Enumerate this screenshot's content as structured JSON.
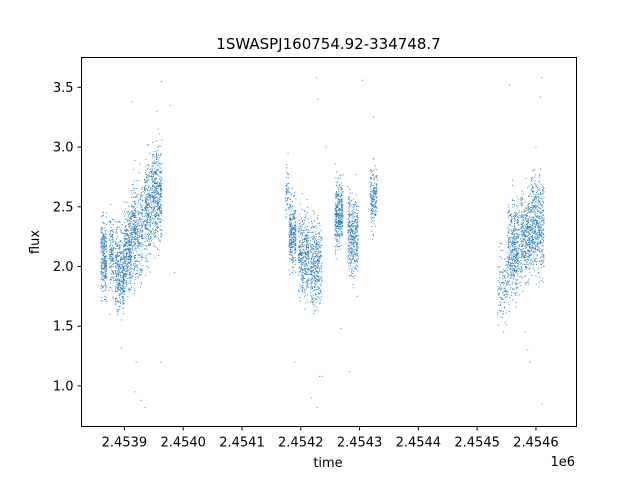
{
  "chart_data": {
    "type": "scatter",
    "title": "1SWASPJ160754.92-334748.7",
    "xlabel": "time",
    "ylabel": "flux",
    "x_offset_label": "1e6",
    "xlim": [
      2453827,
      2454669
    ],
    "ylim": [
      0.66,
      3.75
    ],
    "x_ticks": [
      2.4539,
      2.454,
      2.4541,
      2.4542,
      2.4543,
      2.4544,
      2.4545,
      2.4546
    ],
    "x_tick_labels": [
      "2.4539",
      "2.4540",
      "2.4541",
      "2.4542",
      "2.4543",
      "2.4544",
      "2.4545",
      "2.4546"
    ],
    "y_ticks": [
      1.0,
      1.5,
      2.0,
      2.5,
      3.0,
      3.5
    ],
    "y_tick_labels": [
      "1.0",
      "1.5",
      "2.0",
      "2.5",
      "3.0",
      "3.5"
    ],
    "grid": false,
    "marker_color": "#1f77b4",
    "clusters": [
      {
        "x": [
          2453860,
          2453870
        ],
        "y": 2.08,
        "spread": 0.16,
        "n": 260
      },
      {
        "x": [
          2453874,
          2453882
        ],
        "y": 2.12,
        "spread": 0.15,
        "n": 140
      },
      {
        "x": [
          2453884,
          2453900
        ],
        "y": 1.95,
        "spread": 0.17,
        "n": 360
      },
      {
        "x": [
          2453900,
          2453912
        ],
        "y": 2.15,
        "spread": 0.17,
        "n": 300
      },
      {
        "x": [
          2453912,
          2453932
        ],
        "y": 2.3,
        "spread": 0.2,
        "n": 380
      },
      {
        "x": [
          2453934,
          2453945
        ],
        "y": 2.45,
        "spread": 0.2,
        "n": 260
      },
      {
        "x": [
          2453946,
          2453964
        ],
        "y": 2.6,
        "spread": 0.2,
        "n": 440
      },
      {
        "x": [
          2454174,
          2454180
        ],
        "y": 2.6,
        "spread": 0.12,
        "n": 50
      },
      {
        "x": [
          2454180,
          2454192
        ],
        "y": 2.28,
        "spread": 0.15,
        "n": 280
      },
      {
        "x": [
          2454196,
          2454214
        ],
        "y": 2.1,
        "spread": 0.17,
        "n": 360
      },
      {
        "x": [
          2454216,
          2454236
        ],
        "y": 2.02,
        "spread": 0.18,
        "n": 380
      },
      {
        "x": [
          2454258,
          2454272
        ],
        "y": 2.45,
        "spread": 0.14,
        "n": 340
      },
      {
        "x": [
          2454280,
          2454298
        ],
        "y": 2.25,
        "spread": 0.17,
        "n": 380
      },
      {
        "x": [
          2454318,
          2454330
        ],
        "y": 2.58,
        "spread": 0.14,
        "n": 180
      },
      {
        "x": [
          2454535,
          2454552
        ],
        "y": 1.85,
        "spread": 0.14,
        "n": 120
      },
      {
        "x": [
          2454552,
          2454572
        ],
        "y": 2.15,
        "spread": 0.2,
        "n": 420
      },
      {
        "x": [
          2454574,
          2454592
        ],
        "y": 2.25,
        "spread": 0.18,
        "n": 380
      },
      {
        "x": [
          2454592,
          2454614
        ],
        "y": 2.35,
        "spread": 0.2,
        "n": 460
      }
    ],
    "outliers": [
      {
        "x": 2453935,
        "y": 0.82
      },
      {
        "x": 2453928,
        "y": 0.88
      },
      {
        "x": 2453918,
        "y": 0.95
      },
      {
        "x": 2453920,
        "y": 1.2
      },
      {
        "x": 2453955,
        "y": 3.3
      },
      {
        "x": 2453963,
        "y": 3.55
      },
      {
        "x": 2453978,
        "y": 3.35
      },
      {
        "x": 2453985,
        "y": 1.95
      },
      {
        "x": 2453962,
        "y": 1.2
      },
      {
        "x": 2453913,
        "y": 3.38
      },
      {
        "x": 2453895,
        "y": 1.32
      },
      {
        "x": 2453875,
        "y": 1.6
      },
      {
        "x": 2454227,
        "y": 3.58
      },
      {
        "x": 2454229,
        "y": 3.4
      },
      {
        "x": 2454228,
        "y": 0.82
      },
      {
        "x": 2454218,
        "y": 0.9
      },
      {
        "x": 2454232,
        "y": 1.08
      },
      {
        "x": 2454236,
        "y": 1.08
      },
      {
        "x": 2454190,
        "y": 1.2
      },
      {
        "x": 2454176,
        "y": 2.85
      },
      {
        "x": 2454243,
        "y": 3.0
      },
      {
        "x": 2454305,
        "y": 3.56
      },
      {
        "x": 2454283,
        "y": 1.12
      },
      {
        "x": 2454268,
        "y": 1.48
      },
      {
        "x": 2454324,
        "y": 3.25
      },
      {
        "x": 2454296,
        "y": 1.75
      },
      {
        "x": 2454555,
        "y": 3.52
      },
      {
        "x": 2454610,
        "y": 3.58
      },
      {
        "x": 2454608,
        "y": 3.42
      },
      {
        "x": 2454610,
        "y": 0.85
      },
      {
        "x": 2454582,
        "y": 1.45
      },
      {
        "x": 2454586,
        "y": 1.3
      },
      {
        "x": 2454590,
        "y": 1.2
      },
      {
        "x": 2454600,
        "y": 3.0
      },
      {
        "x": 2454545,
        "y": 1.45
      },
      {
        "x": 2454540,
        "y": 1.58
      }
    ]
  }
}
